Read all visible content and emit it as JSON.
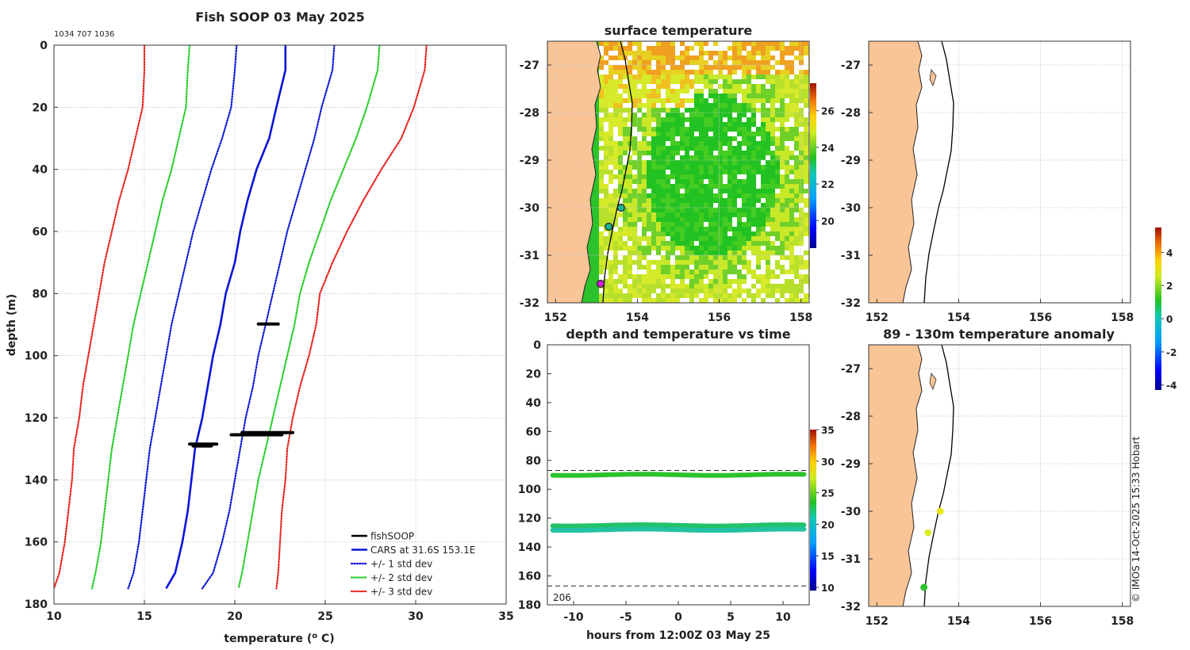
{
  "figure": {
    "title": "Fish SOOP 03 May 2025",
    "subtitle_ids": "1034 707 1036",
    "credit": "© IMOS 14-Oct-2025 15:33 Hobart"
  },
  "chart_data": [
    {
      "id": "profile",
      "type": "line",
      "title": "",
      "xlabel": "temperature (°C)",
      "ylabel": "depth (m)",
      "xlim": [
        10,
        35
      ],
      "ylim": [
        0,
        180
      ],
      "xticks": [
        "10",
        "15",
        "20",
        "25",
        "30",
        "35"
      ],
      "yticks": [
        "0",
        "20",
        "40",
        "60",
        "80",
        "100",
        "120",
        "140",
        "160",
        "180"
      ],
      "grid": true,
      "legend_position": "bottom-right",
      "depth": [
        0,
        8,
        20,
        30,
        40,
        50,
        60,
        70,
        80,
        90,
        100,
        110,
        120,
        130,
        140,
        150,
        160,
        170,
        175
      ],
      "series": [
        {
          "name": "CARS at 31.6S 153.1E",
          "style": "solid",
          "color": "#0a14d8",
          "values": [
            22.8,
            22.8,
            22.3,
            21.9,
            21.2,
            20.7,
            20.3,
            20.0,
            19.5,
            19.2,
            18.8,
            18.5,
            18.2,
            17.8,
            17.6,
            17.4,
            17.1,
            16.7,
            16.2
          ]
        },
        {
          "name": "+/- 1 std dev",
          "style": "dotted",
          "color": "#0a14d8",
          "values": [
            25.5,
            25.4,
            24.8,
            24.4,
            23.9,
            23.4,
            22.9,
            22.5,
            22.1,
            21.7,
            21.3,
            21.0,
            20.6,
            20.3,
            20.0,
            19.7,
            19.3,
            18.8,
            18.2
          ]
        },
        {
          "name": "+/- 1 std dev",
          "style": "dotted",
          "color": "#0a14d8",
          "legend": false,
          "values": [
            20.1,
            20.0,
            19.8,
            19.3,
            18.7,
            18.2,
            17.7,
            17.3,
            16.9,
            16.5,
            16.2,
            15.9,
            15.6,
            15.3,
            15.1,
            14.9,
            14.7,
            14.4,
            14.1
          ]
        },
        {
          "name": "+/- 2 std dev",
          "style": "dotted",
          "color": "#22cc22",
          "values": [
            28.0,
            27.9,
            27.3,
            26.7,
            26.0,
            25.3,
            24.7,
            24.1,
            23.6,
            23.3,
            22.9,
            22.5,
            22.1,
            21.7,
            21.3,
            21.0,
            20.7,
            20.4,
            20.2
          ]
        },
        {
          "name": "+/- 2 std dev",
          "style": "dotted",
          "color": "#22cc22",
          "legend": false,
          "values": [
            17.5,
            17.4,
            17.3,
            16.9,
            16.5,
            16.0,
            15.6,
            15.2,
            14.8,
            14.4,
            14.1,
            13.8,
            13.5,
            13.2,
            13.0,
            12.8,
            12.6,
            12.3,
            12.1
          ]
        },
        {
          "name": "+/- 3 std dev",
          "style": "dotted",
          "color": "#e8201c",
          "values": [
            30.6,
            30.5,
            29.9,
            29.2,
            28.1,
            27.1,
            26.2,
            25.4,
            24.7,
            24.5,
            24.1,
            23.6,
            23.2,
            22.9,
            22.8,
            22.6,
            22.5,
            22.4,
            22.3
          ]
        },
        {
          "name": "+/- 3 std dev",
          "style": "dotted",
          "color": "#e8201c",
          "legend": false,
          "values": [
            15.0,
            15.0,
            14.9,
            14.5,
            14.1,
            13.6,
            13.2,
            12.8,
            12.5,
            12.2,
            11.9,
            11.6,
            11.4,
            11.1,
            11.0,
            10.8,
            10.6,
            10.3,
            10.0
          ]
        }
      ],
      "fishsoop": {
        "name": "fishSOOP",
        "color": "#000000",
        "segments": [
          {
            "depth": 89.8,
            "x0": 21.3,
            "x1": 22.4
          },
          {
            "depth": 124.8,
            "x0": 20.4,
            "x1": 23.2
          },
          {
            "depth": 125.5,
            "x0": 19.8,
            "x1": 22.6
          },
          {
            "depth": 128.5,
            "x0": 17.5,
            "x1": 19.0
          },
          {
            "depth": 129.1,
            "x0": 17.7,
            "x1": 18.7
          }
        ]
      },
      "legend": [
        {
          "label": "fishSOOP",
          "color": "#000000",
          "style": "solid"
        },
        {
          "label": "CARS at 31.6S 153.1E",
          "color": "#0a14d8",
          "style": "solid"
        },
        {
          "label": "+/- 1 std dev",
          "color": "#0a14d8",
          "style": "dotted"
        },
        {
          "label": "+/- 2 std dev",
          "color": "#22cc22",
          "style": "dotted"
        },
        {
          "label": "+/- 3 std dev",
          "color": "#e8201c",
          "style": "dotted"
        }
      ]
    },
    {
      "id": "sst",
      "type": "heatmap",
      "title": "surface temperature",
      "xlim": [
        151.8,
        158.2
      ],
      "ylim": [
        -32,
        -26.5
      ],
      "xticks": [
        "152",
        "154",
        "156",
        "158"
      ],
      "yticks": [
        "-27",
        "-28",
        "-29",
        "-30",
        "-31",
        "-32"
      ],
      "colorbar": {
        "range": [
          18.5,
          27.5
        ],
        "ticks": [
          "20",
          "22",
          "24",
          "26"
        ]
      },
      "markers": [
        {
          "lon": 153.6,
          "lat": -30.0,
          "value": 21.5,
          "color": "#19b38f"
        },
        {
          "lon": 153.3,
          "lat": -30.4,
          "value": 21.5,
          "color": "#19b38f"
        },
        {
          "lon": 153.1,
          "lat": -31.6,
          "value": 0,
          "color": "#d61cd6"
        }
      ]
    },
    {
      "id": "time",
      "type": "scatter",
      "title": "depth and temperature vs time",
      "xlabel": "hours from 12:00Z 03 May 25",
      "ylabel": "",
      "xlim": [
        -12.5,
        12.5
      ],
      "ylim": [
        0,
        180
      ],
      "xticks": [
        "-10",
        "-5",
        "0",
        "5",
        "10"
      ],
      "yticks": [
        "0",
        "20",
        "40",
        "60",
        "80",
        "100",
        "120",
        "140",
        "160",
        "180"
      ],
      "annotation": "206",
      "dashed_depths": [
        87,
        167
      ],
      "tracks": [
        {
          "depth": 90,
          "temperature": 22.3,
          "color": "#2cc22c"
        },
        {
          "depth": 125,
          "temperature": 21.2,
          "color": "#22c26a"
        },
        {
          "depth": 128,
          "temperature": 18.8,
          "color": "#22c2a2"
        }
      ],
      "colorbar": {
        "range": [
          9.5,
          35
        ],
        "ticks": [
          "10",
          "15",
          "20",
          "25",
          "30",
          "35"
        ]
      }
    },
    {
      "id": "map_blank",
      "type": "scatter",
      "title": "",
      "xlim": [
        151.8,
        158.2
      ],
      "ylim": [
        -32,
        -26.5
      ],
      "xticks": [
        "152",
        "154",
        "156",
        "158"
      ],
      "yticks": [
        "-27",
        "-28",
        "-29",
        "-30",
        "-31",
        "-32"
      ]
    },
    {
      "id": "anomaly",
      "type": "scatter",
      "title": "89 - 130m temperature anomaly",
      "xlim": [
        151.8,
        158.2
      ],
      "ylim": [
        -32,
        -26.5
      ],
      "xticks": [
        "152",
        "154",
        "156",
        "158"
      ],
      "yticks": [
        "-27",
        "-28",
        "-29",
        "-30",
        "-31",
        "-32"
      ],
      "points": [
        {
          "lon": 153.55,
          "lat": -30.0,
          "anomaly": 2.5,
          "color": "#e8e81c"
        },
        {
          "lon": 153.25,
          "lat": -30.45,
          "anomaly": 2.3,
          "color": "#d9ec2a"
        },
        {
          "lon": 153.15,
          "lat": -31.6,
          "anomaly": 0.6,
          "color": "#2cc22c"
        }
      ],
      "colorbar": {
        "range": [
          -4.3,
          5.5
        ],
        "ticks": [
          "-4",
          "-2",
          "0",
          "2",
          "4"
        ]
      }
    }
  ]
}
